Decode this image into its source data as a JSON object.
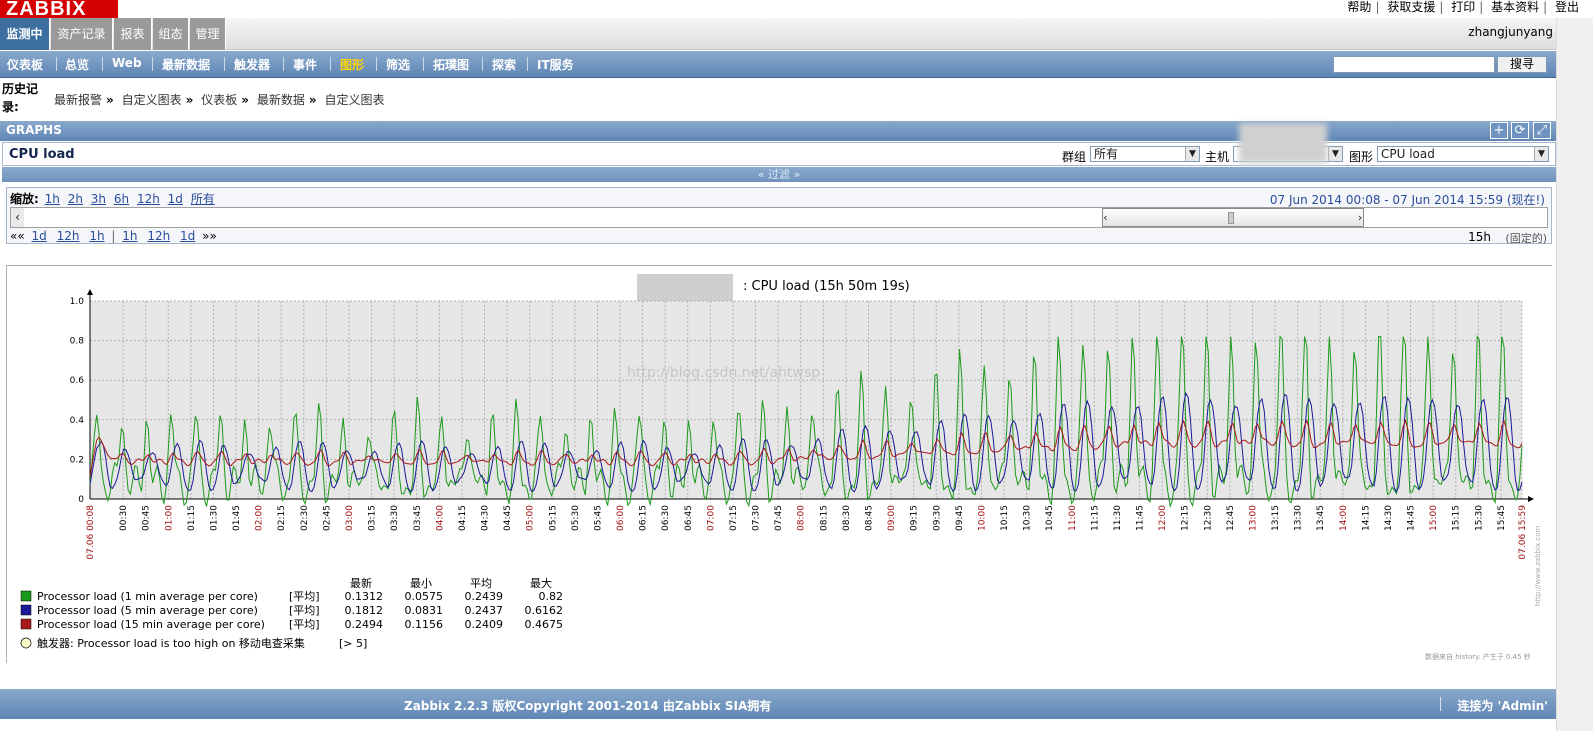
{
  "header": {
    "logo": "ZABBIX",
    "links": [
      "帮助",
      "获取支援",
      "打印",
      "基本资料",
      "登出"
    ],
    "username": "zhangjunyang"
  },
  "main_menu": {
    "tabs": [
      "监测中",
      "资产记录",
      "报表",
      "组态",
      "管理"
    ],
    "active": "监测中"
  },
  "sub_menu": {
    "items": [
      "仪表板",
      "总览",
      "Web",
      "最新数据",
      "触发器",
      "事件",
      "图形",
      "筛选",
      "拓璞图",
      "探索",
      "IT服务"
    ],
    "active": "图形",
    "search_value": "",
    "search_button": "搜寻"
  },
  "breadcrumb": {
    "label": "历史记录:",
    "items": [
      "最新报警",
      "自定义图表",
      "仪表板",
      "最新数据",
      "自定义图表"
    ],
    "separator": "»"
  },
  "graphs": {
    "header": "GRAPHS",
    "header_icons": [
      "add-icon",
      "refresh-icon",
      "fullscreen-icon"
    ],
    "name": "CPU load",
    "group_label": "群组",
    "group_value": "所有",
    "host_label": "主机",
    "host_value": "",
    "graph_label": "图形",
    "graph_value": "CPU load",
    "filter_label": "« 过滤 »"
  },
  "zoom": {
    "label": "缩放:",
    "options": [
      "1h",
      "2h",
      "3h",
      "6h",
      "12h",
      "1d",
      "所有"
    ],
    "period": "07 Jun 2014 00:08  -  07 Jun 2014 15:59 (现在!)",
    "nav_back": [
      "««",
      "1d",
      "12h",
      "1h"
    ],
    "nav_forward": [
      "1h",
      "12h",
      "1d",
      "»»"
    ],
    "duration": "15h",
    "fixed_label": "(固定的)",
    "thumb_position_fraction": 0.83
  },
  "chart_data": {
    "type": "line",
    "title": ": CPU load (15h 50m 19s)",
    "ylim": [
      0,
      1.0
    ],
    "yticks": [
      "0",
      "0.2",
      "0.4",
      "0.6",
      "0.8",
      "1.0"
    ],
    "x_start_label": "07.06 00:08",
    "x_end_label": "07.06 15:59",
    "x_tick_labels": [
      "00:30",
      "00:45",
      "01:00",
      "01:15",
      "01:30",
      "01:45",
      "02:00",
      "02:15",
      "02:30",
      "02:45",
      "03:00",
      "03:15",
      "03:30",
      "03:45",
      "04:00",
      "04:15",
      "04:30",
      "04:45",
      "05:00",
      "05:15",
      "05:30",
      "05:45",
      "06:00",
      "06:15",
      "06:30",
      "06:45",
      "07:00",
      "07:15",
      "07:30",
      "07:45",
      "08:00",
      "08:15",
      "08:30",
      "08:45",
      "09:00",
      "09:15",
      "09:30",
      "09:45",
      "10:00",
      "10:15",
      "10:30",
      "10:45",
      "11:00",
      "11:15",
      "11:30",
      "11:45",
      "12:00",
      "12:15",
      "12:30",
      "12:45",
      "13:00",
      "13:15",
      "13:30",
      "13:45",
      "14:00",
      "14:15",
      "14:30",
      "14:45",
      "15:00",
      "15:15",
      "15:30",
      "15:45"
    ],
    "series": [
      {
        "name": "Processor load (1 min average per core)",
        "color": "#1a9a1a",
        "last": "0.1312",
        "min": "0.0575",
        "avg": "0.2439",
        "max": "0.82"
      },
      {
        "name": "Processor load (5 min average per core)",
        "color": "#1a1a99",
        "last": "0.1812",
        "min": "0.0831",
        "avg": "0.2437",
        "max": "0.6162"
      },
      {
        "name": "Processor load (15 min average per core)",
        "color": "#aa1a1a",
        "last": "0.2494",
        "min": "0.1156",
        "avg": "0.2409",
        "max": "0.4675"
      }
    ],
    "legend_headers": [
      "最新",
      "最小",
      "平均",
      "最大"
    ],
    "legend_func": "[平均]",
    "trigger": {
      "label": "触发器: Processor load is too high on 移动电查采集",
      "value": "[> 5]"
    },
    "watermark": "http://blog.csdn.net/ahtwsp",
    "footer_note": "数据来自 history. 产生于 0.45 秒",
    "side_note": "http://www.zabbix.com"
  },
  "footer": {
    "copyright": "Zabbix 2.2.3 版权Copyright 2001-2014 由Zabbix SIA拥有",
    "connected": "连接为 'Admin'"
  }
}
